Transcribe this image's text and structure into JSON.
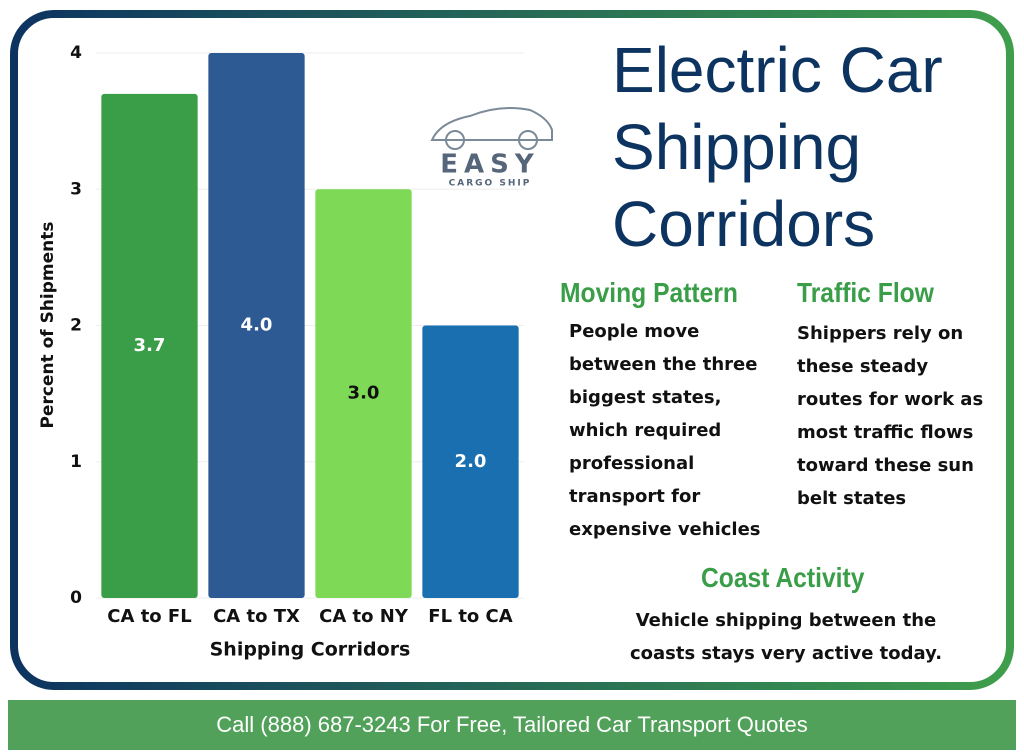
{
  "chart_data": {
    "type": "bar",
    "title": "Electric Car Shipping Corridors",
    "x_label": "Shipping Corridors",
    "y_label": "Percent of Shipments",
    "categories": [
      "CA to FL",
      "CA to TX",
      "CA to NY",
      "FL to CA"
    ],
    "values": [
      3.7,
      4.0,
      3.0,
      2.0
    ],
    "value_labels": [
      "3.7",
      "4.0",
      "3.0",
      "2.0"
    ],
    "colors": [
      "#3a9e48",
      "#2e5a94",
      "#7ed957",
      "#1a6fb0"
    ],
    "ylim": [
      0,
      4
    ],
    "yticks": [
      0,
      1,
      2,
      3,
      4
    ],
    "grid": true
  },
  "logo": {
    "name": "EASY",
    "tagline": "CARGO SHIP"
  },
  "sections": [
    {
      "heading": "Moving Pattern",
      "text": "People move between the three biggest states, which required professional transport for expensive vehicles"
    },
    {
      "heading": "Traffic Flow",
      "text": "Shippers rely on these steady routes for work as most traffic flows toward these sun belt states"
    },
    {
      "heading": "Coast Activity",
      "text": "Vehicle shipping between the coasts stays very active today."
    }
  ],
  "footer": "Call (888) 687-3243 For Free, Tailored Car Transport Quotes"
}
